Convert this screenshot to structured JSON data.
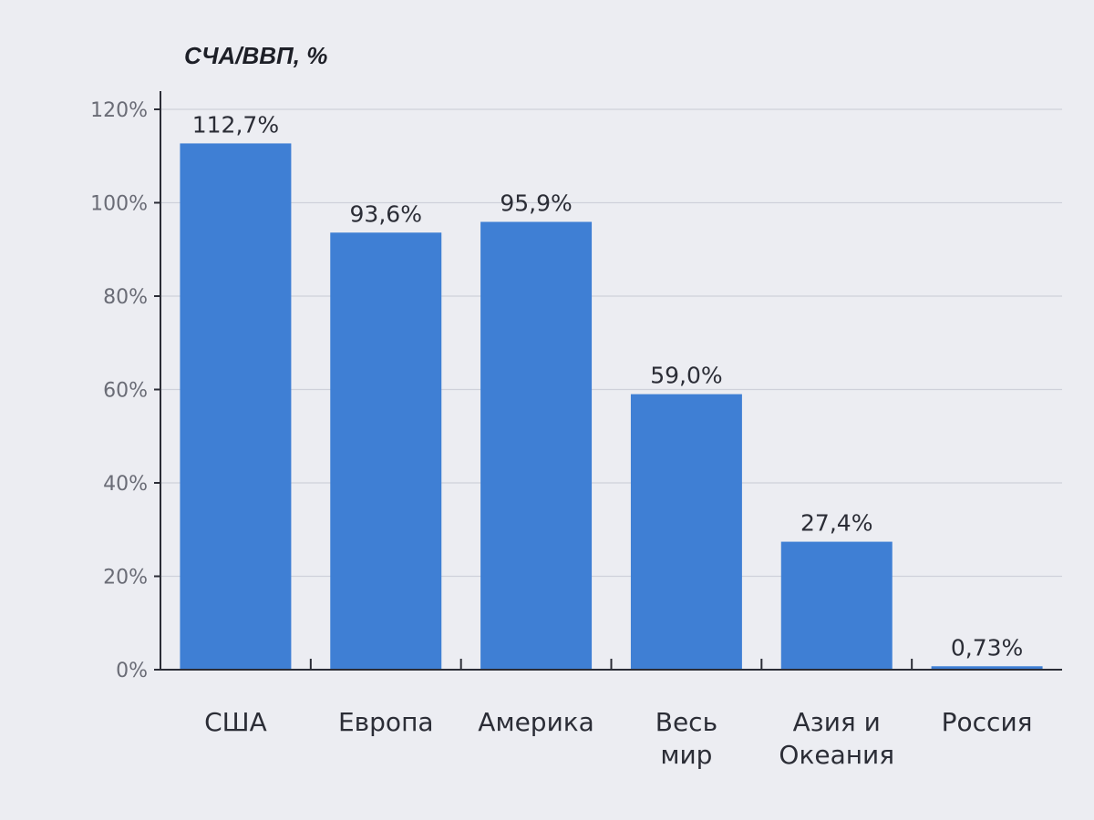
{
  "chart_data": {
    "type": "bar",
    "ylabel": "СЧА/ВВП, %",
    "categories": [
      [
        "США"
      ],
      [
        "Европа"
      ],
      [
        "Америка"
      ],
      [
        "Весь",
        "мир"
      ],
      [
        "Азия и",
        "Океания"
      ],
      [
        "Россия"
      ]
    ],
    "values": [
      112.7,
      93.6,
      95.9,
      59.0,
      27.4,
      0.73
    ],
    "value_labels": [
      "112,7%",
      "93,6%",
      "95,9%",
      "59,0%",
      "27,4%",
      "0,73%"
    ],
    "y_ticks": [
      0,
      20,
      40,
      60,
      80,
      100,
      120
    ],
    "y_tick_labels": [
      "0%",
      "20%",
      "40%",
      "60%",
      "80%",
      "100%",
      "120%"
    ],
    "ylim": [
      0,
      120
    ],
    "grid": true,
    "bar_color": "#3f7fd4"
  }
}
